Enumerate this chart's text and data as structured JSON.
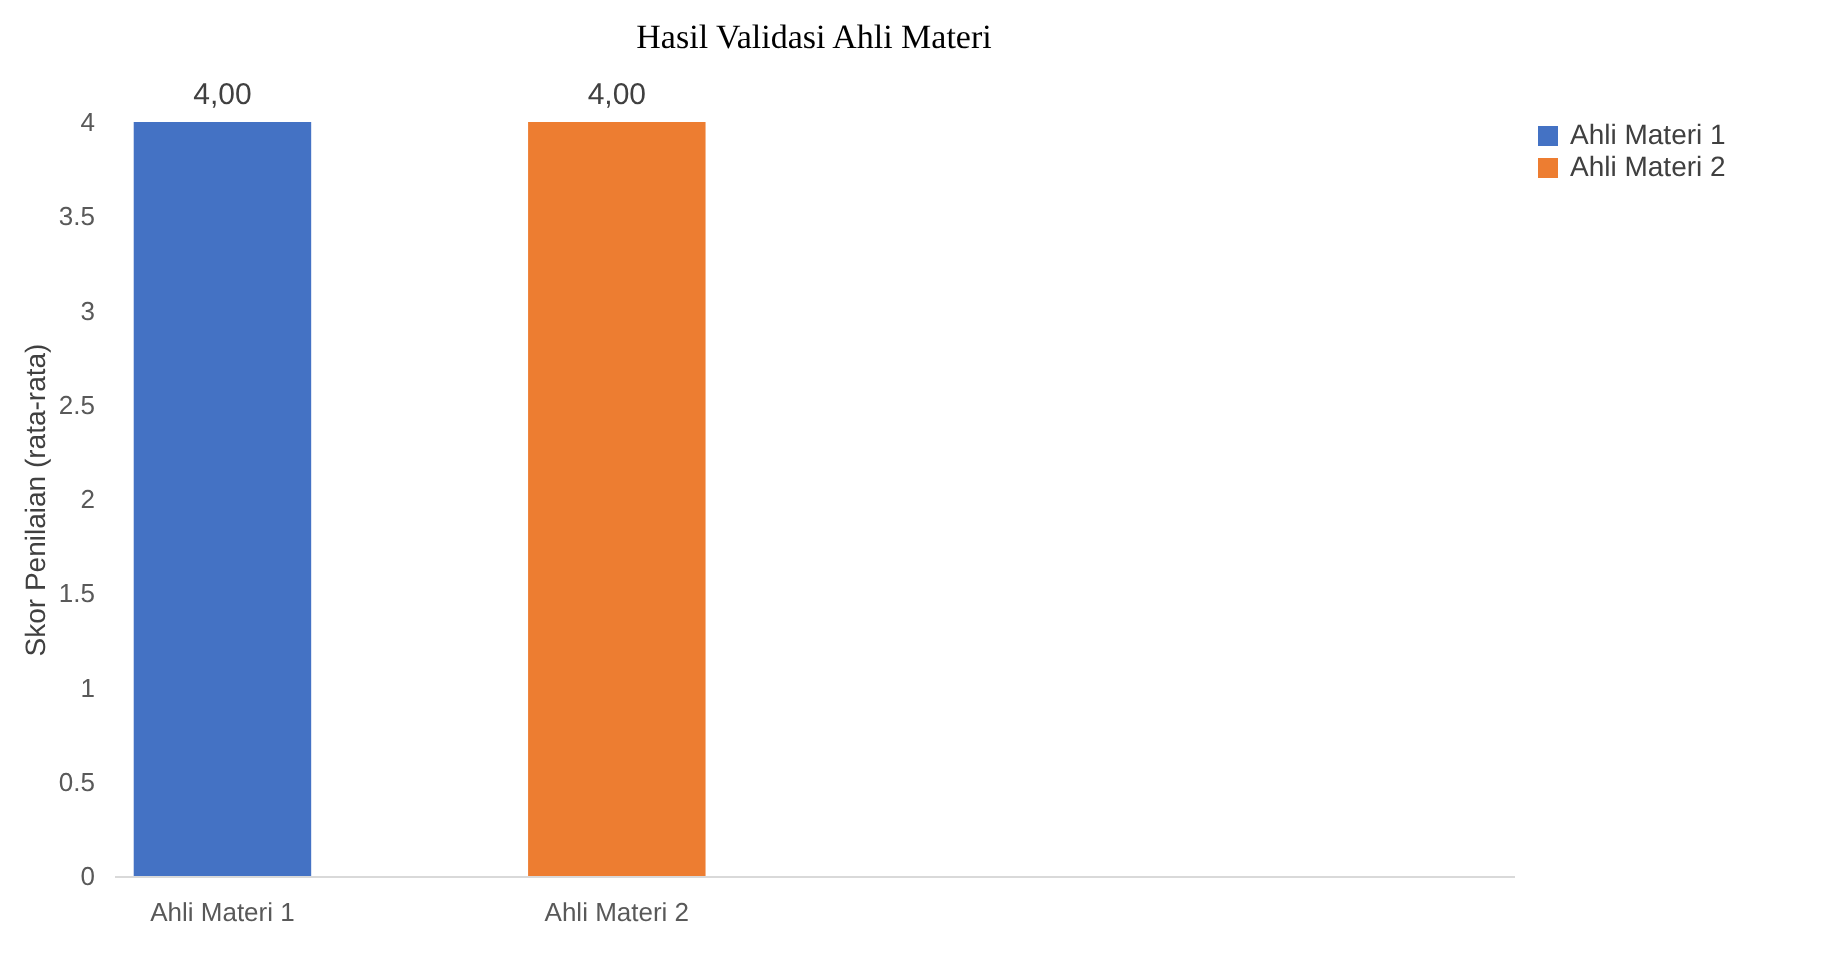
{
  "chart_data": {
    "type": "bar",
    "title": "Hasil Validasi Ahli Materi",
    "ylabel": "Skor Penilaian (rata-rata)",
    "categories": [
      "Ahli Materi 1",
      "Ahli Materi 2",
      null,
      null
    ],
    "series": [
      {
        "name": "Ahli Materi 1",
        "color": "#4472c4",
        "values": [
          4,
          null,
          null,
          null
        ],
        "value_labels": [
          "4,00",
          null,
          null,
          null
        ]
      },
      {
        "name": "Ahli Materi 2",
        "color": "#ed7d31",
        "values": [
          null,
          4,
          null,
          null
        ],
        "value_labels": [
          null,
          "4,00",
          null,
          null
        ]
      }
    ],
    "ylim": [
      0,
      4
    ],
    "yticks": [
      0,
      0.5,
      1,
      1.5,
      2,
      2.5,
      3,
      3.5,
      4
    ],
    "grid": false,
    "legend": "right"
  }
}
